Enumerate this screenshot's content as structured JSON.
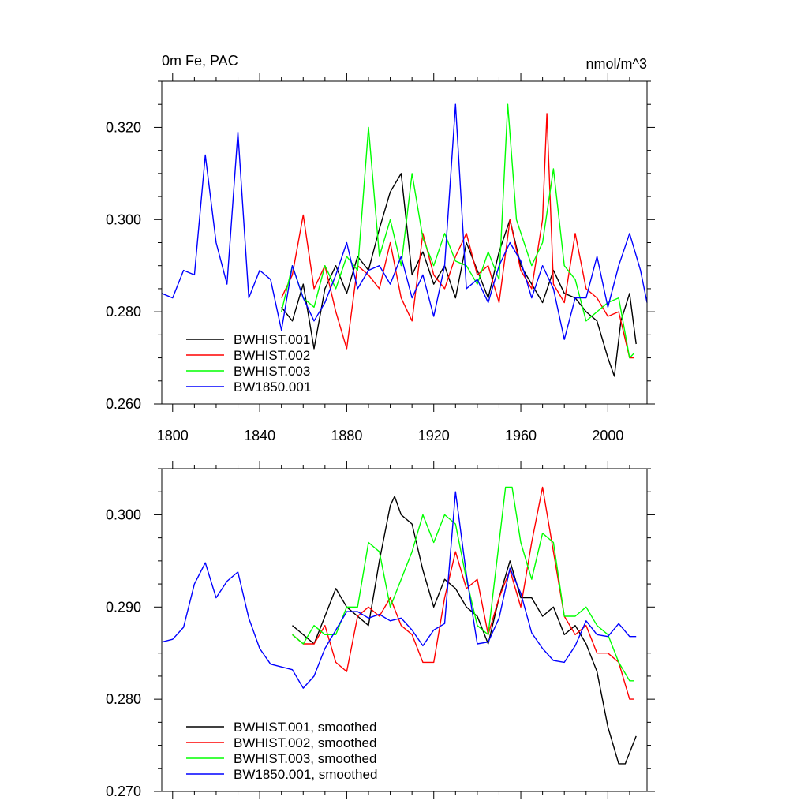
{
  "chart_data": [
    {
      "type": "line",
      "title": "0m Fe, PAC",
      "units": "nmol/m^3",
      "xlabel": "",
      "ylabel": "",
      "xlim": [
        1795,
        2018
      ],
      "ylim": [
        0.26,
        0.33
      ],
      "x_ticks": [
        1800,
        1840,
        1880,
        1920,
        1960,
        2000
      ],
      "x_tick_labels": [
        "1800",
        "1840",
        "1880",
        "1920",
        "1960",
        "2000"
      ],
      "y_ticks": [
        0.26,
        0.28,
        0.3,
        0.32
      ],
      "y_tick_labels": [
        "0.260",
        "0.280",
        "0.300",
        "0.320"
      ],
      "legend_position": "bottom-left",
      "series": [
        {
          "name": "BWHIST.001",
          "color": "#000000",
          "x": [
            1850,
            1855,
            1860,
            1865,
            1870,
            1875,
            1880,
            1885,
            1890,
            1895,
            1900,
            1905,
            1910,
            1915,
            1920,
            1925,
            1930,
            1935,
            1940,
            1945,
            1950,
            1955,
            1960,
            1965,
            1970,
            1975,
            1980,
            1985,
            1990,
            1995,
            2000,
            2003,
            2006,
            2010,
            2013
          ],
          "y": [
            0.281,
            0.278,
            0.286,
            0.272,
            0.285,
            0.29,
            0.284,
            0.292,
            0.289,
            0.298,
            0.306,
            0.31,
            0.288,
            0.293,
            0.286,
            0.29,
            0.283,
            0.295,
            0.289,
            0.283,
            0.293,
            0.3,
            0.29,
            0.286,
            0.282,
            0.289,
            0.284,
            0.283,
            0.28,
            0.278,
            0.27,
            0.266,
            0.278,
            0.284,
            0.273
          ]
        },
        {
          "name": "BWHIST.002",
          "color": "#ff0000",
          "x": [
            1850,
            1855,
            1860,
            1865,
            1870,
            1875,
            1880,
            1885,
            1890,
            1895,
            1900,
            1905,
            1910,
            1915,
            1920,
            1925,
            1930,
            1935,
            1940,
            1945,
            1950,
            1955,
            1960,
            1965,
            1970,
            1972,
            1975,
            1980,
            1985,
            1990,
            1995,
            2000,
            2005,
            2010,
            2012
          ],
          "y": [
            0.283,
            0.288,
            0.301,
            0.285,
            0.29,
            0.28,
            0.272,
            0.29,
            0.288,
            0.285,
            0.295,
            0.283,
            0.278,
            0.297,
            0.288,
            0.285,
            0.292,
            0.297,
            0.288,
            0.29,
            0.282,
            0.3,
            0.289,
            0.285,
            0.3,
            0.323,
            0.286,
            0.282,
            0.297,
            0.285,
            0.283,
            0.279,
            0.28,
            0.27,
            0.27
          ]
        },
        {
          "name": "BWHIST.003",
          "color": "#00ff00",
          "x": [
            1850,
            1855,
            1860,
            1865,
            1870,
            1875,
            1880,
            1885,
            1890,
            1895,
            1900,
            1905,
            1910,
            1915,
            1920,
            1925,
            1930,
            1935,
            1940,
            1945,
            1950,
            1954,
            1958,
            1965,
            1970,
            1975,
            1980,
            1985,
            1990,
            1995,
            2000,
            2005,
            2010,
            2012
          ],
          "y": [
            0.28,
            0.29,
            0.283,
            0.281,
            0.29,
            0.285,
            0.292,
            0.289,
            0.32,
            0.292,
            0.3,
            0.29,
            0.31,
            0.296,
            0.29,
            0.297,
            0.291,
            0.29,
            0.286,
            0.293,
            0.287,
            0.325,
            0.3,
            0.29,
            0.295,
            0.311,
            0.29,
            0.287,
            0.278,
            0.28,
            0.282,
            0.283,
            0.27,
            0.271
          ]
        },
        {
          "name": "BW1850.001",
          "color": "#0000ff",
          "x": [
            1795,
            1800,
            1805,
            1810,
            1815,
            1820,
            1825,
            1830,
            1835,
            1840,
            1845,
            1850,
            1855,
            1860,
            1865,
            1870,
            1875,
            1880,
            1885,
            1890,
            1895,
            1900,
            1905,
            1910,
            1915,
            1920,
            1925,
            1930,
            1935,
            1940,
            1945,
            1950,
            1955,
            1960,
            1965,
            1970,
            1975,
            1980,
            1985,
            1990,
            1995,
            2000,
            2005,
            2010,
            2015,
            2018
          ],
          "y": [
            0.284,
            0.283,
            0.289,
            0.288,
            0.314,
            0.295,
            0.286,
            0.319,
            0.283,
            0.289,
            0.287,
            0.276,
            0.29,
            0.283,
            0.278,
            0.282,
            0.288,
            0.295,
            0.285,
            0.289,
            0.29,
            0.286,
            0.292,
            0.283,
            0.288,
            0.279,
            0.29,
            0.325,
            0.285,
            0.287,
            0.282,
            0.29,
            0.295,
            0.291,
            0.283,
            0.29,
            0.285,
            0.274,
            0.283,
            0.283,
            0.292,
            0.281,
            0.29,
            0.297,
            0.289,
            0.282
          ]
        }
      ]
    },
    {
      "type": "line",
      "title": "",
      "xlabel": "",
      "ylabel": "",
      "xlim": [
        1795,
        2018
      ],
      "ylim": [
        0.27,
        0.305
      ],
      "x_ticks": [
        1800,
        1840,
        1880,
        1920,
        1960,
        2000
      ],
      "y_ticks": [
        0.27,
        0.28,
        0.29,
        0.3
      ],
      "y_tick_labels": [
        "0.270",
        "0.280",
        "0.290",
        "0.300"
      ],
      "legend_position": "bottom-left",
      "series": [
        {
          "name": "BWHIST.001, smoothed",
          "color": "#000000",
          "x": [
            1855,
            1860,
            1865,
            1870,
            1875,
            1880,
            1885,
            1890,
            1895,
            1900,
            1902,
            1905,
            1910,
            1915,
            1920,
            1925,
            1930,
            1935,
            1940,
            1945,
            1950,
            1955,
            1960,
            1965,
            1970,
            1975,
            1980,
            1985,
            1990,
            1995,
            2000,
            2005,
            2008,
            2013
          ],
          "y": [
            0.288,
            0.287,
            0.286,
            0.289,
            0.292,
            0.29,
            0.289,
            0.288,
            0.295,
            0.301,
            0.302,
            0.3,
            0.299,
            0.294,
            0.29,
            0.293,
            0.292,
            0.29,
            0.289,
            0.286,
            0.291,
            0.295,
            0.291,
            0.291,
            0.289,
            0.29,
            0.287,
            0.288,
            0.286,
            0.283,
            0.277,
            0.273,
            0.273,
            0.276
          ]
        },
        {
          "name": "BWHIST.002, smoothed",
          "color": "#ff0000",
          "x": [
            1855,
            1860,
            1865,
            1870,
            1875,
            1880,
            1885,
            1890,
            1895,
            1900,
            1905,
            1910,
            1915,
            1920,
            1925,
            1930,
            1935,
            1940,
            1945,
            1950,
            1955,
            1960,
            1965,
            1970,
            1975,
            1980,
            1985,
            1990,
            1995,
            2000,
            2005,
            2010,
            2012
          ],
          "y": [
            0.287,
            0.286,
            0.286,
            0.288,
            0.284,
            0.283,
            0.289,
            0.29,
            0.289,
            0.291,
            0.288,
            0.287,
            0.284,
            0.284,
            0.291,
            0.296,
            0.292,
            0.293,
            0.287,
            0.291,
            0.294,
            0.29,
            0.297,
            0.303,
            0.296,
            0.289,
            0.287,
            0.288,
            0.285,
            0.285,
            0.284,
            0.28,
            0.28
          ]
        },
        {
          "name": "BWHIST.003, smoothed",
          "color": "#00ff00",
          "x": [
            1855,
            1860,
            1865,
            1870,
            1875,
            1880,
            1885,
            1890,
            1895,
            1900,
            1905,
            1910,
            1915,
            1920,
            1925,
            1930,
            1935,
            1940,
            1945,
            1950,
            1953,
            1956,
            1960,
            1965,
            1970,
            1975,
            1980,
            1985,
            1990,
            1995,
            2000,
            2005,
            2010,
            2012
          ],
          "y": [
            0.287,
            0.286,
            0.288,
            0.287,
            0.287,
            0.29,
            0.29,
            0.297,
            0.296,
            0.29,
            0.293,
            0.296,
            0.3,
            0.297,
            0.3,
            0.299,
            0.293,
            0.288,
            0.287,
            0.297,
            0.303,
            0.303,
            0.297,
            0.293,
            0.298,
            0.297,
            0.289,
            0.289,
            0.29,
            0.288,
            0.287,
            0.284,
            0.282,
            0.282
          ]
        },
        {
          "name": "BW1850.001, smoothed",
          "color": "#0000ff",
          "x": [
            1795,
            1800,
            1805,
            1810,
            1815,
            1820,
            1825,
            1830,
            1835,
            1840,
            1845,
            1850,
            1855,
            1860,
            1865,
            1870,
            1875,
            1880,
            1885,
            1890,
            1895,
            1900,
            1905,
            1910,
            1915,
            1920,
            1925,
            1930,
            1935,
            1940,
            1945,
            1950,
            1955,
            1960,
            1965,
            1970,
            1975,
            1980,
            1985,
            1990,
            1995,
            2000,
            2005,
            2010,
            2013
          ],
          "y": [
            0.2862,
            0.2865,
            0.2878,
            0.2925,
            0.2948,
            0.291,
            0.2928,
            0.2938,
            0.2888,
            0.2855,
            0.2838,
            0.2835,
            0.2832,
            0.2812,
            0.2825,
            0.2855,
            0.2875,
            0.2895,
            0.2895,
            0.2888,
            0.2892,
            0.2885,
            0.2888,
            0.2875,
            0.2858,
            0.2875,
            0.2882,
            0.3025,
            0.2935,
            0.286,
            0.2862,
            0.2888,
            0.2942,
            0.2915,
            0.2872,
            0.2855,
            0.2842,
            0.284,
            0.2858,
            0.2885,
            0.287,
            0.2868,
            0.2882,
            0.2868,
            0.2868
          ]
        }
      ]
    }
  ]
}
